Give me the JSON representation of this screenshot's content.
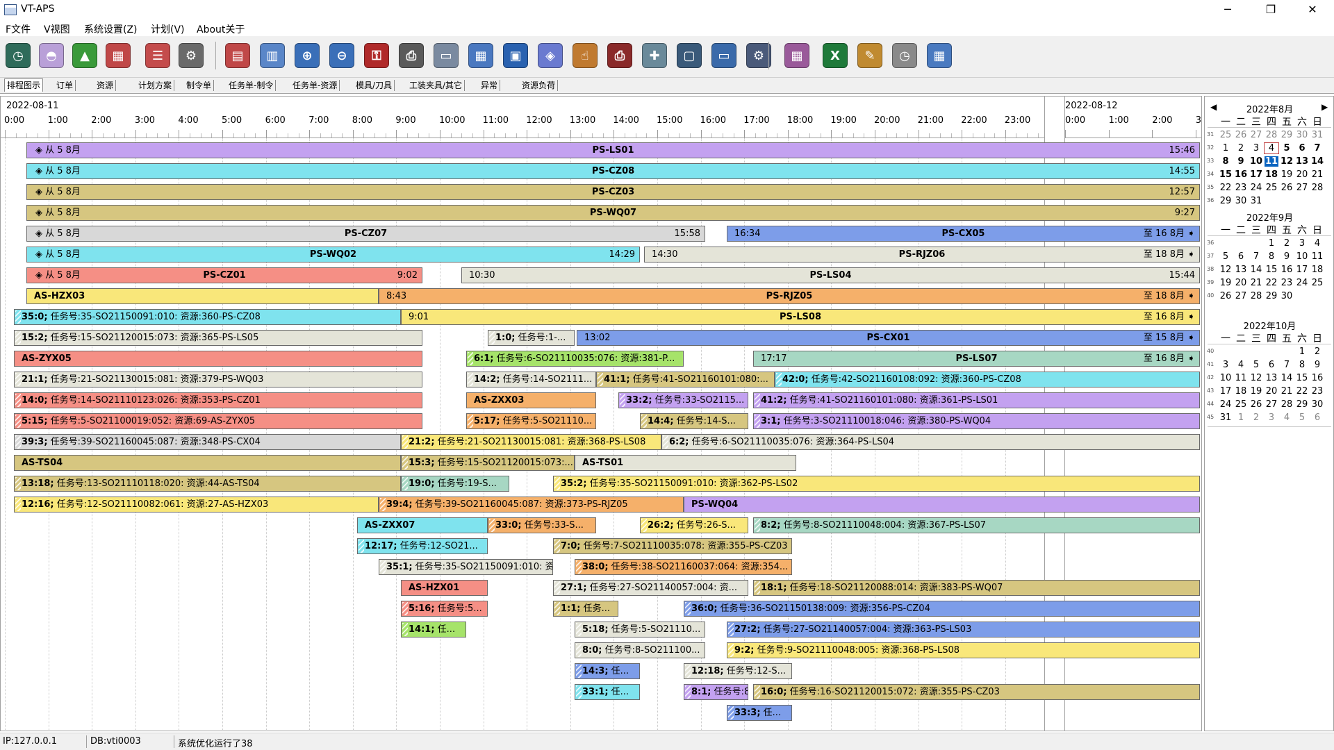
{
  "window": {
    "title": "VT-APS",
    "minimize": "─",
    "maximize": "❐",
    "close": "✕"
  },
  "menu": [
    "F文件",
    "V视图",
    "系统设置(Z)",
    "计划(V)",
    "About关于"
  ],
  "toolbar_icons": [
    "clock-icon",
    "cake-icon",
    "chart-icon",
    "calendar-grid-icon",
    "person-list-icon",
    "gears-icon",
    "gantt-icon",
    "report-icon",
    "zoom-in-icon",
    "zoom-out-icon",
    "key-icon",
    "printer-icon",
    "document-icon",
    "layout-icon",
    "window-icon",
    "shield-icon",
    "touch-icon",
    "printer-color-icon",
    "clipboard-add-icon",
    "save-icon",
    "folder-icon",
    "settings-disk-icon",
    "calendar-clock-icon",
    "excel-icon",
    "tools-icon",
    "stopwatch-icon",
    "calendar-export-icon"
  ],
  "tabs": [
    "排程图示",
    "订单",
    "资源",
    "计划方案",
    "制令单",
    "任务单-制令",
    "任务单-资源",
    "模具/刀具",
    "工装夹具/其它",
    "异常",
    "资源负荷"
  ],
  "active_tab": "排程图示",
  "ruler": {
    "day1": "2022-08-11",
    "day2": "2022-08-12",
    "hours_day1": [
      "0:00",
      "1:00",
      "2:00",
      "3:00",
      "4:00",
      "5:00",
      "6:00",
      "7:00",
      "8:00",
      "9:00",
      "10:00",
      "11:00",
      "12:00",
      "13:00",
      "14:00",
      "15:00",
      "16:00",
      "17:00",
      "18:00",
      "19:00",
      "20:00",
      "21:00",
      "22:00",
      "23:00"
    ],
    "hours_day2": [
      "0:00",
      "1:00",
      "2:00",
      "3"
    ]
  },
  "bars": [
    {
      "row": 0,
      "x0": 0.5,
      "x1": 28.0,
      "color": "#c3a1f0",
      "from": "从 5 8月",
      "label": "PS-LS01",
      "end": "15:46"
    },
    {
      "row": 1,
      "x0": 0.5,
      "x1": 28.0,
      "color": "#7fe3ee",
      "from": "从 5 8月",
      "label": "PS-CZ08",
      "end": "14:55"
    },
    {
      "row": 2,
      "x0": 0.5,
      "x1": 28.0,
      "color": "#d6c680",
      "from": "从 5 8月",
      "label": "PS-CZ03",
      "end": "12:57"
    },
    {
      "row": 3,
      "x0": 0.5,
      "x1": 28.0,
      "color": "#d6c680",
      "from": "从 5 8月",
      "label": "PS-WQ07",
      "end": "9:27"
    },
    {
      "row": 4,
      "x0": 0.5,
      "x1": 16.1,
      "color": "#d8d8d8",
      "from": "从 5 8月",
      "label": "PS-CZ07",
      "end": "15:58"
    },
    {
      "row": 4,
      "x0": 16.6,
      "x1": 28.0,
      "color": "#7d9de9",
      "start": "16:34",
      "label": "PS-CX05",
      "end": "至 16 8月"
    },
    {
      "row": 5,
      "x0": 0.5,
      "x1": 14.6,
      "color": "#7fe3ee",
      "from": "从 5 8月",
      "label": "PS-WQ02",
      "end": "14:29"
    },
    {
      "row": 5,
      "x0": 14.7,
      "x1": 28.0,
      "color": "#e4e4d8",
      "start": "14:30",
      "label": "PS-RJZ06",
      "end": "至 18 8月"
    },
    {
      "row": 6,
      "x0": 0.5,
      "x1": 9.6,
      "color": "#f58f85",
      "from": "从 5 8月",
      "label": "PS-CZ01",
      "end": "9:02"
    },
    {
      "row": 6,
      "x0": 10.5,
      "x1": 28.0,
      "color": "#e4e4d8",
      "start": "10:30",
      "label": "PS-LS04",
      "end": "15:44"
    },
    {
      "row": 7,
      "x0": 0.5,
      "x1": 8.6,
      "color": "#f9e77a",
      "title": "AS-HZX03"
    },
    {
      "row": 7,
      "x0": 8.6,
      "x1": 28.0,
      "color": "#f5b06a",
      "start": "8:43",
      "label": "PS-RJZ05",
      "end": "至 18 8月"
    },
    {
      "row": 8,
      "x0": 0.2,
      "x1": 9.1,
      "color": "#7fe3ee",
      "hatch": true,
      "b": "35:0;",
      "t": " 任务号:35-SO21150091:010: 资源:360-PS-CZ08"
    },
    {
      "row": 8,
      "x0": 9.1,
      "x1": 28.0,
      "color": "#f9e77a",
      "start": "9:01",
      "label": "PS-LS08",
      "end": "至 16 8月"
    },
    {
      "row": 9,
      "x0": 0.2,
      "x1": 9.6,
      "color": "#e4e4d8",
      "hatch": true,
      "b": "15:2;",
      "t": " 任务号:15-SO21120015:073: 资源:365-PS-LS05"
    },
    {
      "row": 9,
      "x0": 11.1,
      "x1": 13.1,
      "color": "#e4e4d8",
      "hatch": true,
      "b": "1:0;",
      "t": " 任务号:1-..."
    },
    {
      "row": 9,
      "x0": 13.15,
      "x1": 28.0,
      "color": "#7d9de9",
      "start": "13:02",
      "label": "PS-CX01",
      "end": "至 15 8月"
    },
    {
      "row": 10,
      "x0": 0.2,
      "x1": 9.6,
      "color": "#f58f85",
      "title": "AS-ZYX05"
    },
    {
      "row": 10,
      "x0": 10.6,
      "x1": 15.6,
      "color": "#a6e36a",
      "hatch": true,
      "b": "6:1;",
      "t": " 任务号:6-SO21110035:076: 资源:381-P..."
    },
    {
      "row": 10,
      "x0": 17.2,
      "x1": 28.0,
      "color": "#a7d7c3",
      "start": "17:17",
      "label": "PS-LS07",
      "end": "至 16 8月"
    },
    {
      "row": 11,
      "x0": 0.2,
      "x1": 9.6,
      "color": "#e4e4d8",
      "hatch": true,
      "b": "21:1;",
      "t": " 任务号:21-SO21130015:081: 资源:379-PS-WQ03"
    },
    {
      "row": 11,
      "x0": 10.6,
      "x1": 13.6,
      "color": "#e4e4d8",
      "hatch": true,
      "b": "14:2;",
      "t": " 任务号:14-SO2111..."
    },
    {
      "row": 11,
      "x0": 13.6,
      "x1": 17.7,
      "color": "#d6c680",
      "hatch": true,
      "b": "41:1;",
      "t": " 任务号:41-SO21160101:080:..."
    },
    {
      "row": 11,
      "x0": 17.7,
      "x1": 28.0,
      "color": "#7fe3ee",
      "hatch": true,
      "b": "42:0;",
      "t": " 任务号:42-SO21160108:092: 资源:360-PS-CZ08"
    },
    {
      "row": 12,
      "x0": 0.2,
      "x1": 9.6,
      "color": "#f58f85",
      "hatch": true,
      "b": "14:0;",
      "t": " 任务号:14-SO21110123:026: 资源:353-PS-CZ01"
    },
    {
      "row": 12,
      "x0": 10.6,
      "x1": 13.6,
      "color": "#f5b06a",
      "title": "AS-ZXX03"
    },
    {
      "row": 12,
      "x0": 14.1,
      "x1": 17.1,
      "color": "#c3a1f0",
      "hatch": true,
      "b": "33:2;",
      "t": " 任务号:33-SO2115..."
    },
    {
      "row": 12,
      "x0": 17.2,
      "x1": 28.0,
      "color": "#c3a1f0",
      "hatch": true,
      "b": "41:2;",
      "t": " 任务号:41-SO21160101:080: 资源:361-PS-LS01"
    },
    {
      "row": 13,
      "x0": 0.2,
      "x1": 9.6,
      "color": "#f58f85",
      "hatch": true,
      "b": "5:15;",
      "t": " 任务号:5-SO21100019:052: 资源:69-AS-ZYX05"
    },
    {
      "row": 13,
      "x0": 10.6,
      "x1": 13.6,
      "color": "#f5b06a",
      "hatch": true,
      "b": "5:17;",
      "t": " 任务号:5-SO21110..."
    },
    {
      "row": 13,
      "x0": 14.6,
      "x1": 17.1,
      "color": "#d6c680",
      "hatch": true,
      "b": "14:4;",
      "t": " 任务号:14-S..."
    },
    {
      "row": 13,
      "x0": 17.2,
      "x1": 28.0,
      "color": "#c3a1f0",
      "hatch": true,
      "b": "3:1;",
      "t": " 任务号:3-SO21110018:046: 资源:380-PS-WQ04"
    },
    {
      "row": 14,
      "x0": 0.2,
      "x1": 9.1,
      "color": "#d8d8d8",
      "hatch": true,
      "b": "39:3;",
      "t": " 任务号:39-SO21160045:087: 资源:348-PS-CX04"
    },
    {
      "row": 14,
      "x0": 9.1,
      "x1": 15.1,
      "color": "#f9e77a",
      "hatch": true,
      "b": "21:2;",
      "t": " 任务号:21-SO21130015:081: 资源:368-PS-LS08"
    },
    {
      "row": 14,
      "x0": 15.1,
      "x1": 28.0,
      "color": "#e4e4d8",
      "hatch": true,
      "b": "6:2;",
      "t": " 任务号:6-SO21110035:076: 资源:364-PS-LS04"
    },
    {
      "row": 15,
      "x0": 0.2,
      "x1": 9.1,
      "color": "#d6c680",
      "title": "AS-TS04"
    },
    {
      "row": 15,
      "x0": 9.1,
      "x1": 13.1,
      "color": "#d6c680",
      "hatch": true,
      "b": "15:3;",
      "t": " 任务号:15-SO21120015:073:..."
    },
    {
      "row": 15,
      "x0": 13.1,
      "x1": 18.2,
      "color": "#e4e4d8",
      "title": "AS-TS01"
    },
    {
      "row": 16,
      "x0": 0.2,
      "x1": 9.1,
      "color": "#d6c680",
      "hatch": true,
      "b": "13:18;",
      "t": " 任务号:13-SO21110118:020: 资源:44-AS-TS04"
    },
    {
      "row": 16,
      "x0": 9.1,
      "x1": 11.6,
      "color": "#a7d7c3",
      "hatch": true,
      "b": "19:0;",
      "t": " 任务号:19-S..."
    },
    {
      "row": 16,
      "x0": 12.6,
      "x1": 28.0,
      "color": "#f9e77a",
      "hatch": true,
      "b": "35:2;",
      "t": " 任务号:35-SO21150091:010: 资源:362-PS-LS02"
    },
    {
      "row": 17,
      "x0": 0.2,
      "x1": 8.6,
      "color": "#f9e77a",
      "hatch": true,
      "b": "12:16;",
      "t": " 任务号:12-SO21110082:061: 资源:27-AS-HZX03"
    },
    {
      "row": 17,
      "x0": 8.6,
      "x1": 15.6,
      "color": "#f5b06a",
      "hatch": true,
      "b": "39:4;",
      "t": " 任务号:39-SO21160045:087: 资源:373-PS-RJZ05"
    },
    {
      "row": 17,
      "x0": 15.6,
      "x1": 28.0,
      "color": "#c3a1f0",
      "title": "PS-WQ04"
    },
    {
      "row": 18,
      "x0": 8.1,
      "x1": 11.1,
      "color": "#7fe3ee",
      "title": "AS-ZXX07"
    },
    {
      "row": 18,
      "x0": 11.1,
      "x1": 13.6,
      "color": "#f5b06a",
      "hatch": true,
      "b": "33:0;",
      "t": " 任务号:33-S..."
    },
    {
      "row": 18,
      "x0": 14.6,
      "x1": 17.1,
      "color": "#f9e77a",
      "hatch": true,
      "b": "26:2;",
      "t": " 任务号:26-S..."
    },
    {
      "row": 18,
      "x0": 17.2,
      "x1": 28.0,
      "color": "#a7d7c3",
      "hatch": true,
      "b": "8:2;",
      "t": " 任务号:8-SO21110048:004: 资源:367-PS-LS07"
    },
    {
      "row": 19,
      "x0": 8.1,
      "x1": 11.1,
      "color": "#7fe3ee",
      "hatch": true,
      "b": "12:17;",
      "t": " 任务号:12-SO21..."
    },
    {
      "row": 19,
      "x0": 12.6,
      "x1": 18.1,
      "color": "#d6c680",
      "hatch": true,
      "b": "7:0;",
      "t": " 任务号:7-SO21110035:078: 资源:355-PS-CZ03"
    },
    {
      "row": 20,
      "x0": 8.6,
      "x1": 12.6,
      "color": "#e4e4d8",
      "hatch": true,
      "b": "35:1;",
      "t": " 任务号:35-SO21150091:010: 资..."
    },
    {
      "row": 20,
      "x0": 13.1,
      "x1": 18.1,
      "color": "#f5b06a",
      "hatch": true,
      "b": "38:0;",
      "t": " 任务号:38-SO21160037:064: 资源:354..."
    },
    {
      "row": 21,
      "x0": 9.1,
      "x1": 11.1,
      "color": "#f58f85",
      "title": "AS-HZX01"
    },
    {
      "row": 21,
      "x0": 12.6,
      "x1": 17.1,
      "color": "#e4e4d8",
      "hatch": true,
      "b": "27:1;",
      "t": " 任务号:27-SO21140057:004: 资..."
    },
    {
      "row": 21,
      "x0": 17.2,
      "x1": 28.0,
      "color": "#d6c680",
      "hatch": true,
      "b": "18:1;",
      "t": " 任务号:18-SO21120088:014: 资源:383-PS-WQ07"
    },
    {
      "row": 22,
      "x0": 9.1,
      "x1": 11.1,
      "color": "#f58f85",
      "hatch": true,
      "b": "5:16;",
      "t": " 任务号:5..."
    },
    {
      "row": 22,
      "x0": 12.6,
      "x1": 14.1,
      "color": "#d6c680",
      "hatch": true,
      "b": "1:1;",
      "t": " 任务..."
    },
    {
      "row": 22,
      "x0": 15.6,
      "x1": 28.0,
      "color": "#7d9de9",
      "hatch": true,
      "b": "36:0;",
      "t": " 任务号:36-SO21150138:009: 资源:356-PS-CZ04"
    },
    {
      "row": 23,
      "x0": 9.1,
      "x1": 10.6,
      "color": "#a6e36a",
      "hatch": true,
      "b": "14:1;",
      "t": " 任..."
    },
    {
      "row": 23,
      "x0": 13.1,
      "x1": 16.1,
      "color": "#e4e4d8",
      "hatch": true,
      "b": "5:18;",
      "t": " 任务号:5-SO21110..."
    },
    {
      "row": 23,
      "x0": 16.6,
      "x1": 28.0,
      "color": "#7d9de9",
      "hatch": true,
      "b": "27:2;",
      "t": " 任务号:27-SO21140057:004: 资源:363-PS-LS03"
    },
    {
      "row": 24,
      "x0": 13.1,
      "x1": 16.1,
      "color": "#e4e4d8",
      "hatch": true,
      "b": "8:0;",
      "t": " 任务号:8-SO211100..."
    },
    {
      "row": 24,
      "x0": 16.6,
      "x1": 28.0,
      "color": "#f9e77a",
      "hatch": true,
      "b": "9:2;",
      "t": " 任务号:9-SO21110048:005: 资源:368-PS-LS08"
    },
    {
      "row": 25,
      "x0": 13.1,
      "x1": 14.6,
      "color": "#7d9de9",
      "hatch": true,
      "b": "14:3;",
      "t": " 任..."
    },
    {
      "row": 25,
      "x0": 15.6,
      "x1": 18.1,
      "color": "#e4e4d8",
      "hatch": true,
      "b": "12:18;",
      "t": " 任务号:12-S..."
    },
    {
      "row": 26,
      "x0": 13.1,
      "x1": 14.6,
      "color": "#7fe3ee",
      "hatch": true,
      "b": "33:1;",
      "t": " 任..."
    },
    {
      "row": 26,
      "x0": 15.6,
      "x1": 17.1,
      "color": "#c3a1f0",
      "hatch": true,
      "b": "8:1;",
      "t": " 任务号:8-..."
    },
    {
      "row": 26,
      "x0": 17.2,
      "x1": 28.0,
      "color": "#d6c680",
      "hatch": true,
      "b": "16:0;",
      "t": " 任务号:16-SO21120015:072: 资源:355-PS-CZ03"
    },
    {
      "row": 27,
      "x0": 16.6,
      "x1": 18.1,
      "color": "#7d9de9",
      "hatch": true,
      "b": "33:3;",
      "t": " 任..."
    }
  ],
  "calendar": {
    "dow": [
      "一",
      "二",
      "三",
      "四",
      "五",
      "六",
      "日"
    ],
    "months": [
      {
        "title": "2022年8月",
        "weeks": [
          "31",
          "32",
          "33",
          "34",
          "35",
          "36"
        ],
        "days": [
          [
            "25",
            "26",
            "27",
            "28",
            "29",
            "30",
            "31"
          ],
          [
            "1",
            "2",
            "3",
            "4",
            "5",
            "6",
            "7"
          ],
          [
            "8",
            "9",
            "10",
            "11",
            "12",
            "13",
            "14"
          ],
          [
            "15",
            "16",
            "17",
            "18",
            "19",
            "20",
            "21"
          ],
          [
            "22",
            "23",
            "24",
            "25",
            "26",
            "27",
            "28"
          ],
          [
            "29",
            "30",
            "31",
            "",
            "",
            "",
            ""
          ]
        ]
      },
      {
        "title": "2022年9月",
        "weeks": [
          "36",
          "37",
          "38",
          "39",
          "40"
        ],
        "days": [
          [
            "",
            "",
            "",
            "1",
            "2",
            "3",
            "4"
          ],
          [
            "5",
            "6",
            "7",
            "8",
            "9",
            "10",
            "11"
          ],
          [
            "12",
            "13",
            "14",
            "15",
            "16",
            "17",
            "18"
          ],
          [
            "19",
            "20",
            "21",
            "22",
            "23",
            "24",
            "25"
          ],
          [
            "26",
            "27",
            "28",
            "29",
            "30",
            "",
            ""
          ]
        ]
      },
      {
        "title": "2022年10月",
        "weeks": [
          "40",
          "41",
          "42",
          "43",
          "44",
          "45"
        ],
        "days": [
          [
            "",
            "",
            "",
            "",
            "",
            "1",
            "2"
          ],
          [
            "3",
            "4",
            "5",
            "6",
            "7",
            "8",
            "9"
          ],
          [
            "10",
            "11",
            "12",
            "13",
            "14",
            "15",
            "16"
          ],
          [
            "17",
            "18",
            "19",
            "20",
            "21",
            "22",
            "23"
          ],
          [
            "24",
            "25",
            "26",
            "27",
            "28",
            "29",
            "30"
          ],
          [
            "31",
            "1",
            "2",
            "3",
            "4",
            "5",
            "6"
          ]
        ]
      }
    ],
    "today": "11",
    "selected": "4"
  },
  "status": {
    "ip": "IP:127.0.0.1",
    "db": "DB:vti0003",
    "msg": "系统优化运行了38"
  }
}
